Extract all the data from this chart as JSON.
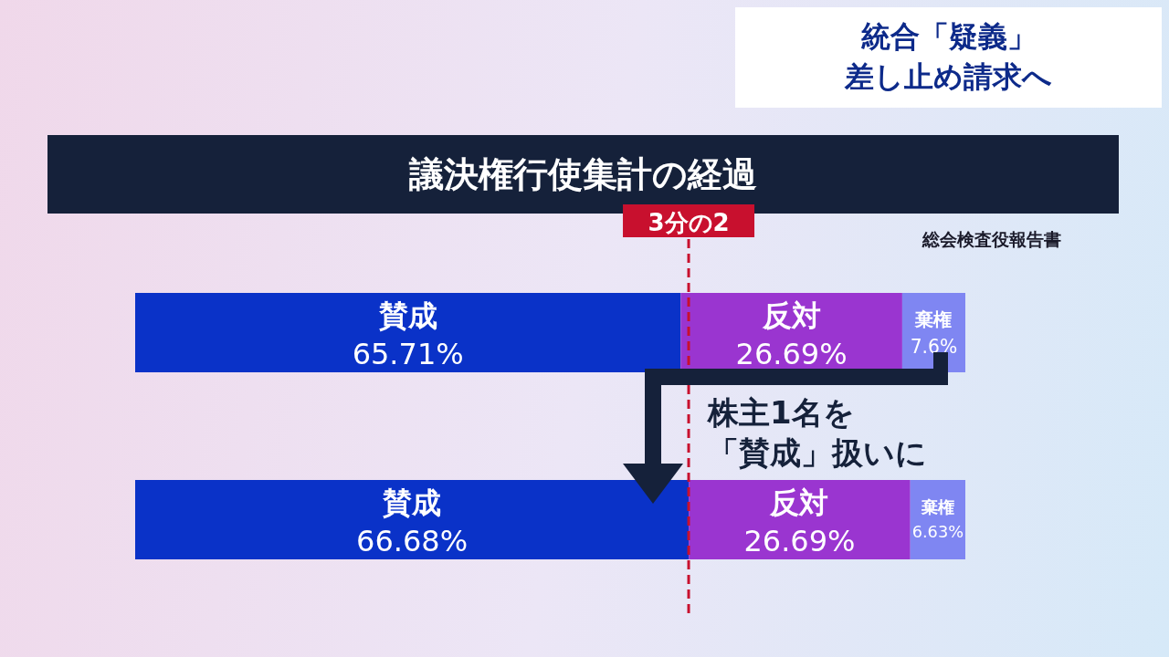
{
  "chart_data": {
    "type": "bar",
    "orientation": "horizontal",
    "stacked": true,
    "title": "議決権行使集計の経過",
    "categories": [
      null,
      null
    ],
    "xlim": [
      0,
      100
    ],
    "legend": false,
    "grid": false,
    "series": [
      {
        "name": "賛成",
        "color": "#0a32c8",
        "values": [
          65.71,
          66.68
        ],
        "value_labels": [
          "65.71%",
          "66.68%"
        ]
      },
      {
        "name": "反対",
        "color": "#9a35d0",
        "values": [
          26.69,
          26.69
        ],
        "value_labels": [
          "26.69%",
          "26.69%"
        ]
      },
      {
        "name": "棄権",
        "color": "#7f86f2",
        "values": [
          7.6,
          6.63
        ],
        "value_labels": [
          "7.6%",
          "6.63%"
        ]
      }
    ],
    "ref_lines": [
      {
        "axis": "x",
        "value": 66.67,
        "label": "3分の2",
        "color": "#c8102e",
        "line_style": "dashed"
      }
    ],
    "annotations": [
      "統合「疑義」",
      "差し止め請求へ",
      "総会検査役報告書",
      "株主1名を",
      "「賛成」扱いに"
    ]
  }
}
